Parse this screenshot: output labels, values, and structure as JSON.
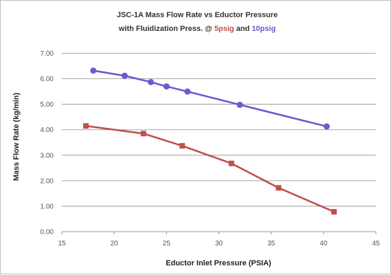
{
  "chart_data": {
    "type": "line",
    "title_line1": "JSC-1A Mass Flow Rate vs Eductor Pressure",
    "title_line2_prefix": "with Fluidization Press. @ ",
    "title_series_a": "5psig",
    "title_and": " and ",
    "title_series_b": "10psig",
    "xlabel": "Eductor Inlet Pressure (PSIA)",
    "ylabel": "Mass Flow Rate (kg/min)",
    "xlim": [
      15,
      45
    ],
    "ylim": [
      0,
      7.5
    ],
    "xticks": [
      "15",
      "20",
      "25",
      "30",
      "35",
      "40",
      "45"
    ],
    "yticks": [
      "0.00",
      "1.00",
      "2.00",
      "3.00",
      "4.00",
      "5.00",
      "6.00",
      "7.00"
    ],
    "grid": true,
    "series": [
      {
        "name": "10psig",
        "color": "#6a5acd",
        "marker": "circle",
        "x": [
          18.0,
          21.0,
          23.5,
          25.0,
          27.0,
          32.0,
          40.3
        ],
        "y": [
          6.32,
          6.12,
          5.87,
          5.7,
          5.5,
          4.98,
          4.13
        ]
      },
      {
        "name": "5psig",
        "color": "#c0504d",
        "marker": "square",
        "x": [
          17.3,
          22.8,
          26.5,
          31.2,
          35.7,
          41.0
        ],
        "y": [
          4.15,
          3.85,
          3.37,
          2.68,
          1.72,
          0.78
        ]
      }
    ]
  }
}
